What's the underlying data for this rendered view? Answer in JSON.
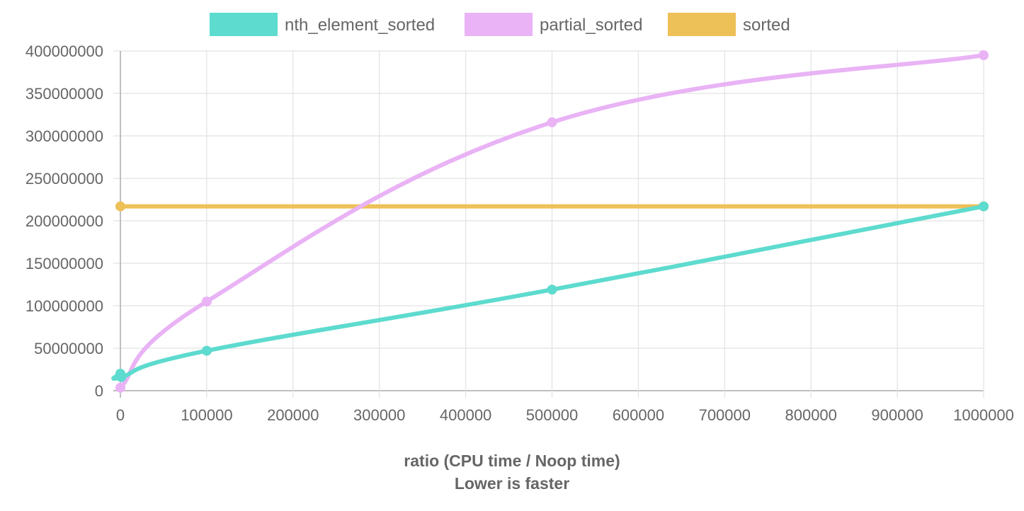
{
  "chart_data": {
    "type": "line",
    "xlabel": "ratio (CPU time / Noop time)",
    "xlabel_sub": "Lower is faster",
    "ylabel": "",
    "xlim": [
      0,
      1000000
    ],
    "ylim": [
      0,
      400000000
    ],
    "x_ticks": [
      "0",
      "100000",
      "200000",
      "300000",
      "400000",
      "500000",
      "600000",
      "700000",
      "800000",
      "900000",
      "1000000"
    ],
    "y_ticks": [
      "0",
      "50000000",
      "100000000",
      "150000000",
      "200000000",
      "250000000",
      "300000000",
      "350000000",
      "400000000"
    ],
    "grid": true,
    "legend_position": "top",
    "series": [
      {
        "name": "nth_element_sorted",
        "color": "#5ddbce",
        "points": [
          [
            0,
            20000000
          ],
          [
            1000,
            16000000
          ],
          [
            100000,
            47000000
          ],
          [
            500000,
            119000000
          ],
          [
            1000000,
            217000000
          ]
        ]
      },
      {
        "name": "partial_sorted",
        "color": "#e9b3f5",
        "points": [
          [
            0,
            3500000
          ],
          [
            100000,
            105000000
          ],
          [
            500000,
            316000000
          ],
          [
            1000000,
            395000000
          ]
        ]
      },
      {
        "name": "sorted",
        "color": "#eec058",
        "points": [
          [
            0,
            217000000
          ],
          [
            1000000,
            217000000
          ]
        ]
      }
    ]
  }
}
